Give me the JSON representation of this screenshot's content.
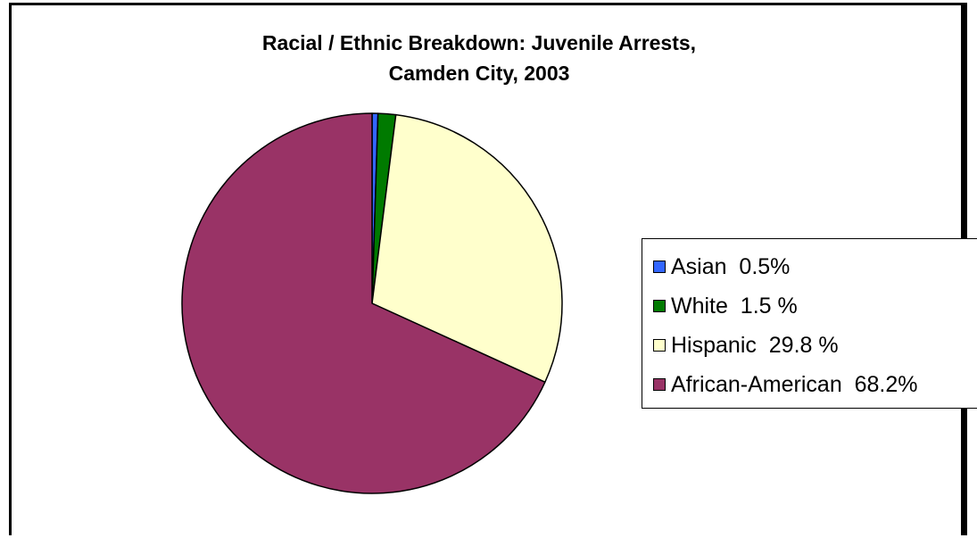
{
  "chart_data": {
    "type": "pie",
    "title_lines": [
      "Racial / Ethnic Breakdown:  Juvenile Arrests,",
      "Camden City, 2003"
    ],
    "slices": [
      {
        "category": "Asian",
        "value": 0.5,
        "legend_label": "Asian  0.5%",
        "color": "#3366ff"
      },
      {
        "category": "White",
        "value": 1.5,
        "legend_label": "White  1.5 %",
        "color": "#007a00"
      },
      {
        "category": "Hispanic",
        "value": 29.8,
        "legend_label": "Hispanic  29.8 %",
        "color": "#ffffcc"
      },
      {
        "category": "African-American",
        "value": 68.2,
        "legend_label": "African-American  68.2%",
        "color": "#993366"
      }
    ],
    "start_angle": "12 o'clock",
    "direction": "clockwise",
    "legend_position": "right"
  }
}
